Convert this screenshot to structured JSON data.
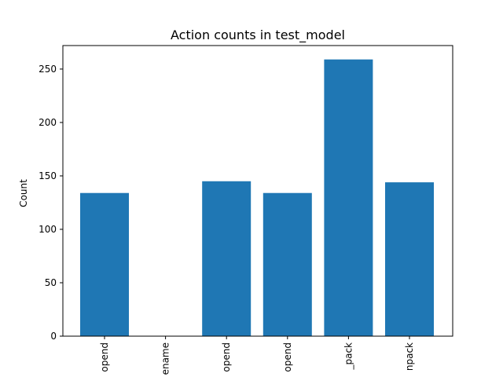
{
  "chart_data": {
    "type": "bar",
    "title": "Action counts in test_model",
    "xlabel": "",
    "ylabel": "Count",
    "categories": [
      "append",
      "rename",
      "append",
      "append",
      "_pack",
      "unpack"
    ],
    "category_labels_visible": [
      "opend",
      "ename",
      "opend",
      "opend",
      "_pack",
      "npack"
    ],
    "values": [
      134,
      0,
      145,
      134,
      259,
      144
    ],
    "ylim": [
      0,
      272
    ],
    "yticks": [
      0,
      50,
      100,
      150,
      200,
      250
    ],
    "bar_color": "#1f77b4",
    "grid": false,
    "legend": "none"
  }
}
